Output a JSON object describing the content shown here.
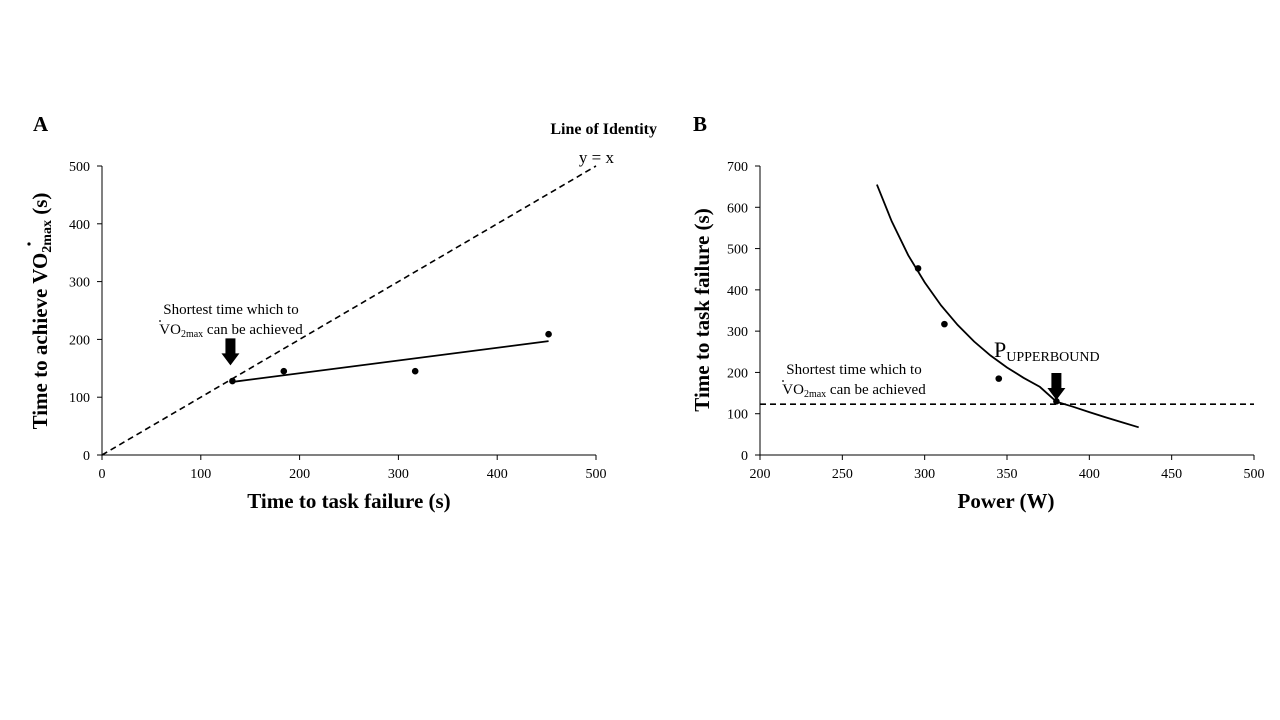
{
  "chart_data": [
    {
      "panel": "A",
      "type": "scatter",
      "xlabel": "Time to task failure (s)",
      "ylabel": "Time to achieve V̇O2max (s)",
      "ylabel_parts": {
        "prefix": "Time to achieve ",
        "v": "V",
        "o2": "O",
        "sub": "2max",
        "suffix": " (s)"
      },
      "xlim": [
        0,
        500
      ],
      "ylim": [
        0,
        500
      ],
      "xticks": [
        0,
        100,
        200,
        300,
        400,
        500
      ],
      "yticks": [
        0,
        100,
        200,
        300,
        400,
        500
      ],
      "points": [
        {
          "x": 132,
          "y": 128
        },
        {
          "x": 184,
          "y": 145
        },
        {
          "x": 317,
          "y": 145
        },
        {
          "x": 452,
          "y": 209
        }
      ],
      "fit_line": {
        "style": "solid",
        "x": [
          130,
          452
        ],
        "y": [
          126,
          197
        ]
      },
      "identity_line": {
        "style": "dashed",
        "x": [
          0,
          500
        ],
        "y": [
          0,
          500
        ]
      },
      "annotations": {
        "identity_title": "Line of Identity",
        "identity_eq": "y = x",
        "shortest_line1": "Shortest time which to",
        "shortest_vo2": "VO",
        "shortest_sub": "2max",
        "shortest_rest": " can be achieved",
        "arrow_at": {
          "x": 130,
          "y": 155
        }
      },
      "grid": false,
      "legend": "none"
    },
    {
      "panel": "B",
      "type": "scatter",
      "xlabel": "Power (W)",
      "ylabel": "Time to task failure (s)",
      "xlim": [
        200,
        500
      ],
      "ylim": [
        0,
        700
      ],
      "xticks": [
        200,
        250,
        300,
        350,
        400,
        450,
        500
      ],
      "yticks": [
        0,
        100,
        200,
        300,
        400,
        500,
        600,
        700
      ],
      "points": [
        {
          "x": 296,
          "y": 452
        },
        {
          "x": 312,
          "y": 317
        },
        {
          "x": 345,
          "y": 185
        },
        {
          "x": 380,
          "y": 130
        }
      ],
      "curve": {
        "style": "solid",
        "x": [
          271,
          280,
          290,
          300,
          310,
          320,
          330,
          340,
          350,
          360,
          370,
          380,
          390,
          400,
          410,
          420,
          430
        ],
        "y": [
          655,
          566,
          484,
          418,
          362,
          315,
          275,
          241,
          212,
          187,
          165,
          129,
          117,
          104,
          91,
          79,
          67
        ]
      },
      "threshold_line": {
        "style": "dashed",
        "y": 123,
        "x": [
          200,
          500
        ]
      },
      "annotations": {
        "shortest_line1": "Shortest time which to",
        "shortest_vo2": "VO",
        "shortest_sub": "2max",
        "shortest_rest": " can be achieved",
        "p_main": "P",
        "p_sub": "UPPERBOUND",
        "arrow_at": {
          "x": 380,
          "y": 155
        }
      },
      "grid": false,
      "legend": "none"
    }
  ]
}
